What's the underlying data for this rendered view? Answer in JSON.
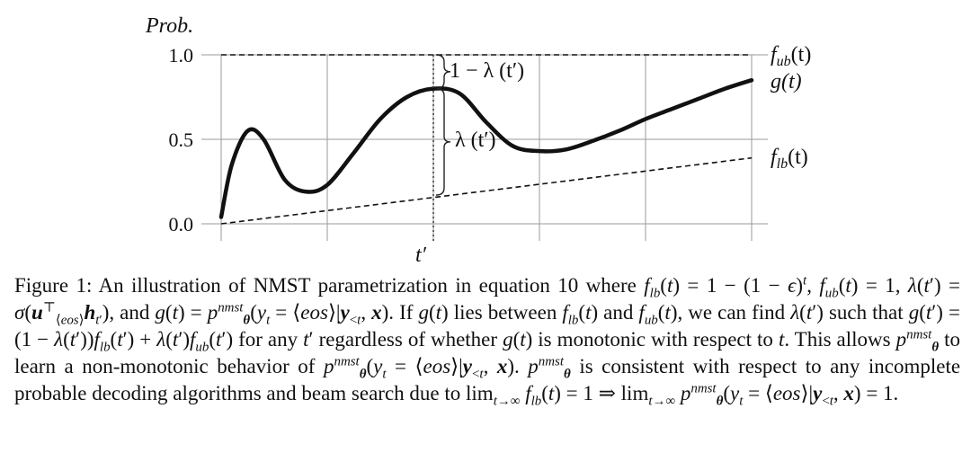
{
  "figure": {
    "ylabel": "Prob.",
    "yticks": [
      "1.0",
      "0.5",
      "0.0"
    ],
    "xtick": "t′",
    "labels": {
      "fub": "f",
      "fub_sub": "ub",
      "flb": "f",
      "flb_sub": "lb",
      "arg_t": "(t)",
      "g": "g(t)",
      "upper_brace": "1 − λ (t′)",
      "lower_brace": "λ (t′)"
    }
  },
  "chart_data": {
    "type": "line",
    "title": "",
    "xlabel": "",
    "ylabel": "Prob.",
    "ylim": [
      0,
      1.0
    ],
    "yticks": [
      0.0,
      0.5,
      1.0
    ],
    "grid": true,
    "series": [
      {
        "name": "f_ub(t)",
        "style": "dashed",
        "x": [
          0,
          10
        ],
        "y": [
          1.0,
          1.0
        ]
      },
      {
        "name": "f_lb(t)",
        "style": "dashed",
        "x": [
          0,
          10
        ],
        "y": [
          0.0,
          0.39
        ]
      },
      {
        "name": "g(t)",
        "style": "solid-thick",
        "x": [
          0,
          0.2,
          0.5,
          0.8,
          1.2,
          1.6,
          2.0,
          2.5,
          3.0,
          3.5,
          4.0,
          4.5,
          5.0,
          5.5,
          6.0,
          6.5,
          7.0,
          7.5,
          8.0,
          8.5,
          9.0,
          9.5,
          10.0
        ],
        "y": [
          0.04,
          0.35,
          0.55,
          0.5,
          0.26,
          0.19,
          0.23,
          0.42,
          0.62,
          0.75,
          0.8,
          0.77,
          0.6,
          0.46,
          0.43,
          0.44,
          0.49,
          0.55,
          0.62,
          0.68,
          0.74,
          0.8,
          0.85
        ]
      }
    ],
    "annotations": [
      {
        "x": 4.0,
        "text": "1 − λ (t′)",
        "from": 0.8,
        "to": 1.0
      },
      {
        "x": 4.0,
        "text": "λ (t′)",
        "from": 0.17,
        "to": 0.8
      }
    ]
  },
  "caption": {
    "line1_label": "Figure 1:",
    "line1_text": "An illustration of NMST parametrization in equation 10 where",
    "line2_and": ", and",
    "line2_if": ". If",
    "line2_lies": "lies between",
    "line3_and": "and",
    "line3_find": ", we can find",
    "line3_such": "such that",
    "line3_for": "for any",
    "line3_regardless": "regardless",
    "line4_of_whether": "of whether",
    "line4_monotonic": "is monotonic with respect to",
    "line4_allows": ". This allows",
    "line4_learn": "to learn a non-monotonic behavior",
    "line5_of": "of",
    "line5_consistent": "is consistent with respect to any incomplete probable decoding",
    "line6_algorithms": "algorithms and beam search due to"
  }
}
